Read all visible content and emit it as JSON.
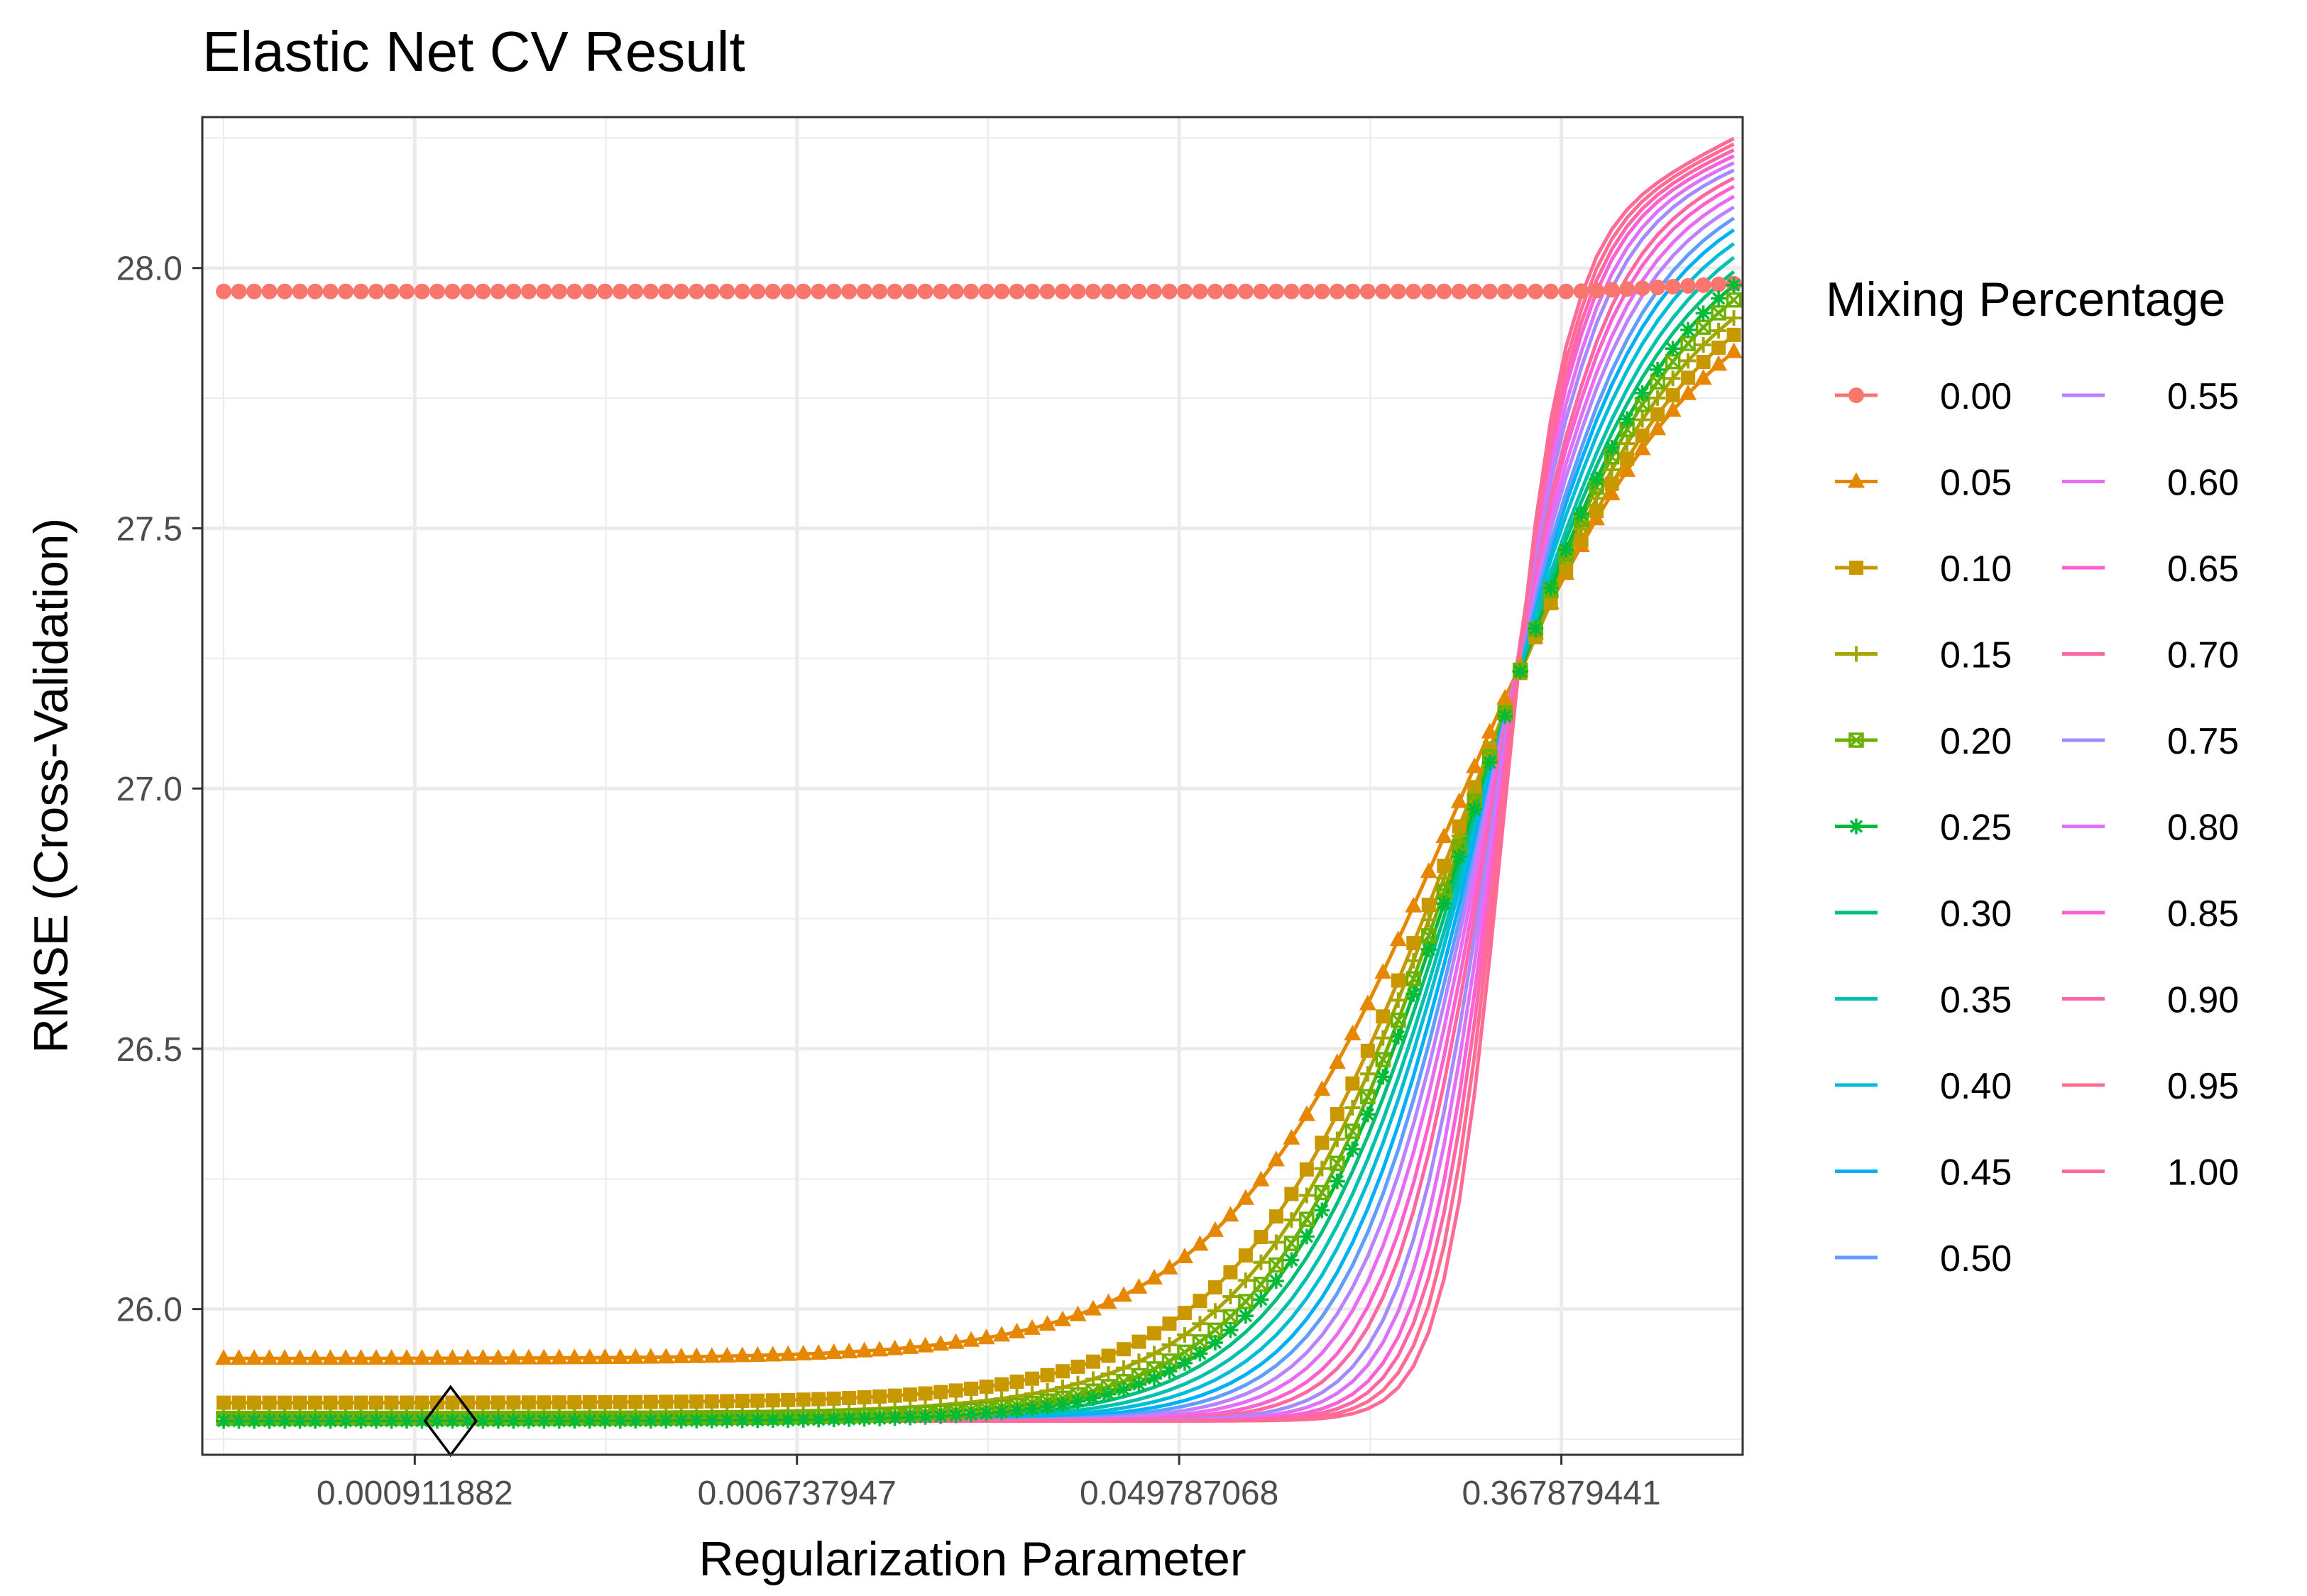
{
  "chart_data": {
    "type": "line",
    "title": "Elastic Net CV Result",
    "xlabel": "Regularization Parameter",
    "ylabel": "RMSE (Cross-Validation)",
    "x_scale": "log",
    "xlim": [
      0.0003,
      0.95
    ],
    "ylim": [
      25.72,
      28.29
    ],
    "x_ticks": [
      {
        "value": 0.000911882,
        "label": "0.000911882"
      },
      {
        "value": 0.006737947,
        "label": "0.006737947"
      },
      {
        "value": 0.049787068,
        "label": "0.049787068"
      },
      {
        "value": 0.367879441,
        "label": "0.367879441"
      }
    ],
    "y_ticks": [
      {
        "value": 26.0,
        "label": "26.0"
      },
      {
        "value": 26.5,
        "label": "26.5"
      },
      {
        "value": 27.0,
        "label": "27.0"
      },
      {
        "value": 27.5,
        "label": "27.5"
      },
      {
        "value": 28.0,
        "label": "28.0"
      }
    ],
    "grid": true,
    "legend": {
      "title": "Mixing Percentage",
      "placement": "right",
      "columns": 2
    },
    "lambda_grid": {
      "from": 0.00033546,
      "to": 0.90718,
      "points": 100,
      "spacing": "log"
    },
    "series": [
      {
        "name": "0.00",
        "color": "#F8766D",
        "marker": "circle",
        "curve": {
          "low": 27.955,
          "high": 27.955,
          "high_end": 27.97,
          "mid": 0.2,
          "scale": 0.5
        }
      },
      {
        "name": "0.05",
        "color": "#E58700",
        "marker": "triangle",
        "curve": {
          "low": 25.905,
          "high": 28.0,
          "high_end": 28.02,
          "mid": 0.21,
          "scale": 0.62
        }
      },
      {
        "name": "0.10",
        "color": "#C99800",
        "marker": "square",
        "curve": {
          "low": 25.82,
          "high": 28.02,
          "high_end": 28.04,
          "mid": 0.214,
          "scale": 0.58
        }
      },
      {
        "name": "0.15",
        "color": "#A3A500",
        "marker": "plus",
        "curve": {
          "low": 25.8,
          "high": 28.04,
          "high_end": 28.06,
          "mid": 0.218,
          "scale": 0.55
        }
      },
      {
        "name": "0.20",
        "color": "#6BB100",
        "marker": "boxcross",
        "curve": {
          "low": 25.79,
          "high": 28.05,
          "high_end": 28.08,
          "mid": 0.222,
          "scale": 0.52
        }
      },
      {
        "name": "0.25",
        "color": "#00BA38",
        "marker": "asterisk",
        "curve": {
          "low": 25.785,
          "high": 28.06,
          "high_end": 28.1,
          "mid": 0.226,
          "scale": 0.5
        }
      },
      {
        "name": "0.30",
        "color": "#00BF7D",
        "marker": "none",
        "curve": {
          "low": 25.785,
          "high": 28.07,
          "high_end": 28.11,
          "mid": 0.23,
          "scale": 0.47
        }
      },
      {
        "name": "0.35",
        "color": "#00C0AF",
        "marker": "none",
        "curve": {
          "low": 25.785,
          "high": 28.07,
          "high_end": 28.12,
          "mid": 0.233,
          "scale": 0.44
        }
      },
      {
        "name": "0.40",
        "color": "#00BCD8",
        "marker": "none",
        "curve": {
          "low": 25.785,
          "high": 28.08,
          "high_end": 28.13,
          "mid": 0.236,
          "scale": 0.41
        }
      },
      {
        "name": "0.45",
        "color": "#00B0F6",
        "marker": "none",
        "curve": {
          "low": 25.785,
          "high": 28.08,
          "high_end": 28.14,
          "mid": 0.239,
          "scale": 0.38
        }
      },
      {
        "name": "0.50",
        "color": "#619CFF",
        "marker": "none",
        "curve": {
          "low": 25.785,
          "high": 28.08,
          "high_end": 28.15,
          "mid": 0.242,
          "scale": 0.355
        }
      },
      {
        "name": "0.55",
        "color": "#B983FF",
        "marker": "none",
        "curve": {
          "low": 25.785,
          "high": 28.09,
          "high_end": 28.16,
          "mid": 0.245,
          "scale": 0.33
        }
      },
      {
        "name": "0.60",
        "color": "#E76BF3",
        "marker": "none",
        "curve": {
          "low": 25.785,
          "high": 28.09,
          "high_end": 28.17,
          "mid": 0.248,
          "scale": 0.305
        }
      },
      {
        "name": "0.65",
        "color": "#FD61D1",
        "marker": "none",
        "curve": {
          "low": 25.785,
          "high": 28.09,
          "high_end": 28.18,
          "mid": 0.251,
          "scale": 0.28
        }
      },
      {
        "name": "0.70",
        "color": "#FF67A4",
        "marker": "none",
        "curve": {
          "low": 25.785,
          "high": 28.09,
          "high_end": 28.19,
          "mid": 0.254,
          "scale": 0.26
        }
      },
      {
        "name": "0.75",
        "color": "#A58AFF",
        "marker": "none",
        "curve": {
          "low": 25.785,
          "high": 28.1,
          "high_end": 28.2,
          "mid": 0.257,
          "scale": 0.24
        }
      },
      {
        "name": "0.80",
        "color": "#DF70F8",
        "marker": "none",
        "curve": {
          "low": 25.785,
          "high": 28.1,
          "high_end": 28.21,
          "mid": 0.26,
          "scale": 0.22
        }
      },
      {
        "name": "0.85",
        "color": "#FB61D7",
        "marker": "none",
        "curve": {
          "low": 25.785,
          "high": 28.1,
          "high_end": 28.22,
          "mid": 0.263,
          "scale": 0.2
        }
      },
      {
        "name": "0.90",
        "color": "#FF66A8",
        "marker": "none",
        "curve": {
          "low": 25.785,
          "high": 28.1,
          "high_end": 28.23,
          "mid": 0.266,
          "scale": 0.185
        }
      },
      {
        "name": "0.95",
        "color": "#FF6C91",
        "marker": "none",
        "curve": {
          "low": 25.785,
          "high": 28.1,
          "high_end": 28.24,
          "mid": 0.269,
          "scale": 0.17
        }
      },
      {
        "name": "1.00",
        "color": "#FF6A98",
        "marker": "none",
        "curve": {
          "low": 25.785,
          "high": 28.1,
          "high_end": 28.25,
          "mid": 0.272,
          "scale": 0.155
        }
      }
    ],
    "best_point": {
      "x": 0.0011,
      "y": 25.785,
      "marker": "diamond"
    }
  }
}
